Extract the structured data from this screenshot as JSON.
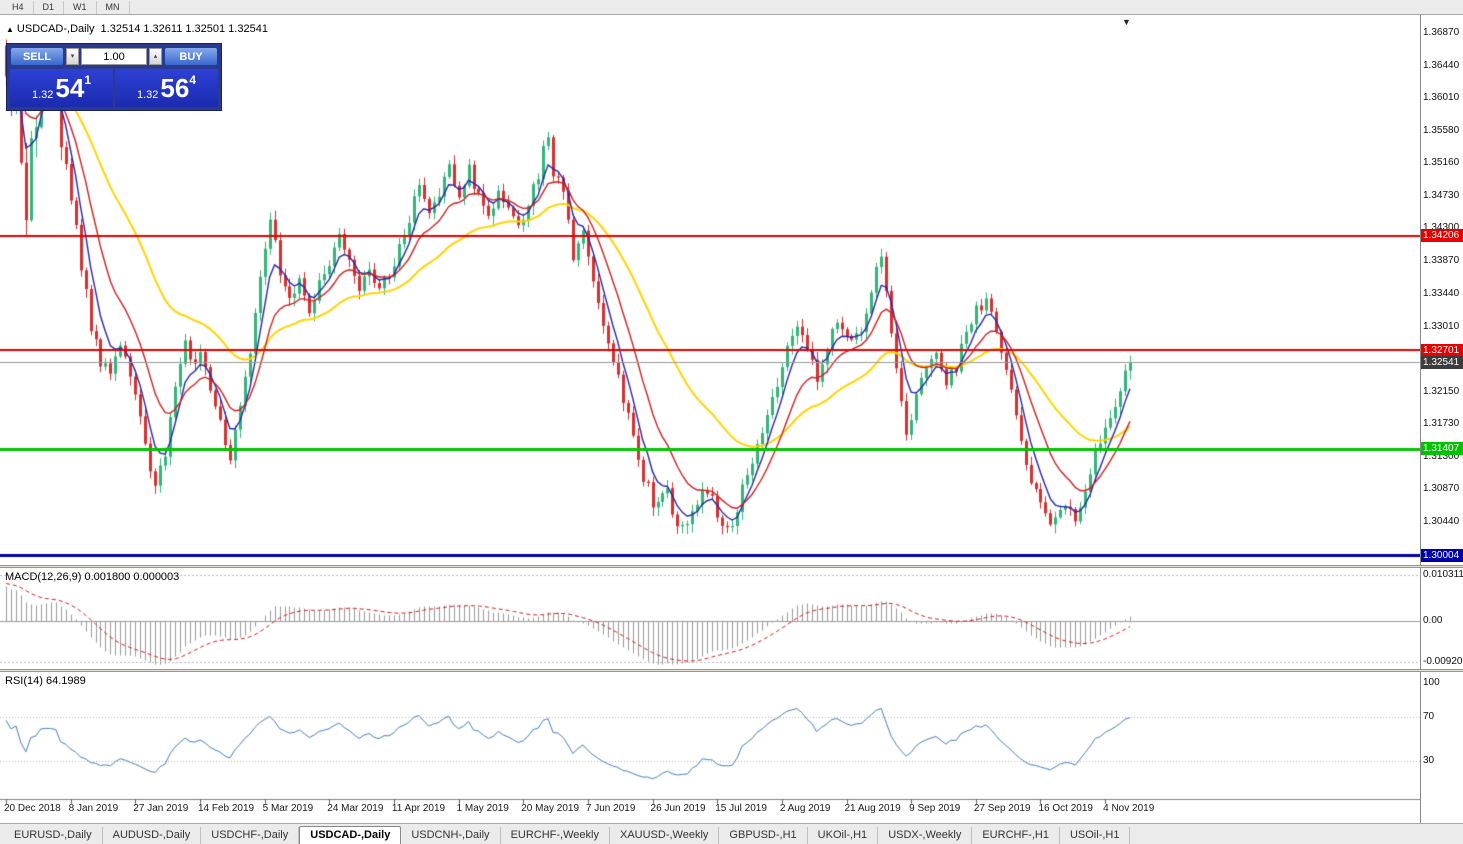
{
  "toolbar": {
    "timeframes": [
      "H4",
      "D1",
      "W1",
      "MN"
    ]
  },
  "chart": {
    "title": "USDCAD-,Daily",
    "ohlc": "1.32514 1.32611 1.32501 1.32541",
    "trade_panel": {
      "sell_label": "SELL",
      "buy_label": "BUY",
      "volume": "1.00",
      "sell_price_main": "1.32",
      "sell_price_big": "54",
      "sell_price_sup": "1",
      "buy_price_main": "1.32",
      "buy_price_big": "56",
      "buy_price_sup": "4"
    }
  },
  "chart_data": {
    "type": "candlestick",
    "symbol": "USDCAD-",
    "timeframe": "Daily",
    "y_ticks": [
      "1.36870",
      "1.36440",
      "1.36010",
      "1.35580",
      "1.35160",
      "1.34730",
      "1.34300",
      "1.33870",
      "1.33440",
      "1.33010",
      "1.32580",
      "1.32150",
      "1.31730",
      "1.31300",
      "1.30870",
      "1.30440"
    ],
    "y_range": [
      1.2989,
      1.3708
    ],
    "x_labels": [
      "20 Dec 2018",
      "8 Jan 2019",
      "27 Jan 2019",
      "14 Feb 2019",
      "5 Mar 2019",
      "24 Mar 2019",
      "11 Apr 2019",
      "1 May 2019",
      "20 May 2019",
      "7 Jun 2019",
      "26 Jun 2019",
      "15 Jul 2019",
      "2 Aug 2019",
      "21 Aug 2019",
      "9 Sep 2019",
      "27 Sep 2019",
      "16 Oct 2019",
      "4 Nov 2019"
    ],
    "x_label_step": 13,
    "hlines": [
      {
        "price": 1.34206,
        "label": "1.34206",
        "color": "#e80000",
        "width": 2
      },
      {
        "price": 1.32701,
        "label": "1.32701",
        "color": "#e80000",
        "width": 2
      },
      {
        "price": 1.31407,
        "label": "1.31407",
        "color": "#00c400",
        "width": 3
      },
      {
        "price": 1.30004,
        "label": "1.30004",
        "color": "#0000a8",
        "width": 3
      }
    ],
    "current_price": {
      "price": 1.32541,
      "label": "1.32541",
      "color": "#3c3c3c"
    },
    "colors": {
      "bull": "#33b57a",
      "bear": "#d63031"
    },
    "moving_averages": [
      {
        "type": "ema",
        "period": 34,
        "color": "#ffd400",
        "width": 2
      },
      {
        "type": "ema",
        "period": 5,
        "color": "#2828aa",
        "width": 1.4
      },
      {
        "type": "ema",
        "period": 12,
        "color": "#cc2222",
        "width": 1.4
      }
    ],
    "candles": {
      "count": 227,
      "last_close": 1.32541,
      "anchors": [
        [
          0,
          1.3655
        ],
        [
          1,
          1.3585
        ],
        [
          2,
          1.3625
        ],
        [
          3,
          1.35
        ],
        [
          4,
          1.3455
        ],
        [
          5,
          1.354
        ],
        [
          7,
          1.3612
        ],
        [
          9,
          1.3662
        ],
        [
          10,
          1.364
        ],
        [
          11,
          1.356
        ],
        [
          13,
          1.3475
        ],
        [
          15,
          1.3378
        ],
        [
          17,
          1.3302
        ],
        [
          19,
          1.3256
        ],
        [
          21,
          1.3232
        ],
        [
          23,
          1.3286
        ],
        [
          25,
          1.3246
        ],
        [
          26,
          1.3216
        ],
        [
          28,
          1.3146
        ],
        [
          30,
          1.3086
        ],
        [
          32,
          1.3132
        ],
        [
          34,
          1.3226
        ],
        [
          36,
          1.3286
        ],
        [
          38,
          1.3246
        ],
        [
          39,
          1.3272
        ],
        [
          41,
          1.3216
        ],
        [
          43,
          1.3176
        ],
        [
          45,
          1.3132
        ],
        [
          47,
          1.3202
        ],
        [
          49,
          1.3266
        ],
        [
          51,
          1.3362
        ],
        [
          53,
          1.3452
        ],
        [
          55,
          1.3376
        ],
        [
          57,
          1.3332
        ],
        [
          59,
          1.3366
        ],
        [
          61,
          1.3322
        ],
        [
          63,
          1.3356
        ],
        [
          65,
          1.3386
        ],
        [
          67,
          1.3422
        ],
        [
          69,
          1.3392
        ],
        [
          71,
          1.3356
        ],
        [
          73,
          1.3386
        ],
        [
          75,
          1.3352
        ],
        [
          77,
          1.3376
        ],
        [
          79,
          1.3402
        ],
        [
          81,
          1.3446
        ],
        [
          83,
          1.3486
        ],
        [
          85,
          1.3452
        ],
        [
          87,
          1.3476
        ],
        [
          89,
          1.3506
        ],
        [
          91,
          1.3472
        ],
        [
          93,
          1.3506
        ],
        [
          95,
          1.3472
        ],
        [
          97,
          1.3446
        ],
        [
          99,
          1.3486
        ],
        [
          101,
          1.3452
        ],
        [
          103,
          1.3436
        ],
        [
          105,
          1.3466
        ],
        [
          107,
          1.3502
        ],
        [
          108,
          1.3546
        ],
        [
          109,
          1.3556
        ],
        [
          110,
          1.3506
        ],
        [
          112,
          1.3476
        ],
        [
          114,
          1.3386
        ],
        [
          116,
          1.3426
        ],
        [
          117,
          1.3402
        ],
        [
          119,
          1.3332
        ],
        [
          121,
          1.3272
        ],
        [
          123,
          1.3232
        ],
        [
          125,
          1.3182
        ],
        [
          127,
          1.3126
        ],
        [
          129,
          1.3086
        ],
        [
          131,
          1.3062
        ],
        [
          133,
          1.3082
        ],
        [
          135,
          1.3046
        ],
        [
          137,
          1.3032
        ],
        [
          139,
          1.3072
        ],
        [
          141,
          1.3092
        ],
        [
          143,
          1.3046
        ],
        [
          145,
          1.3028
        ],
        [
          147,
          1.3062
        ],
        [
          149,
          1.3106
        ],
        [
          151,
          1.3152
        ],
        [
          153,
          1.3186
        ],
        [
          155,
          1.3226
        ],
        [
          157,
          1.3266
        ],
        [
          159,
          1.3306
        ],
        [
          161,
          1.3276
        ],
        [
          163,
          1.3236
        ],
        [
          165,
          1.3276
        ],
        [
          167,
          1.3312
        ],
        [
          169,
          1.3296
        ],
        [
          171,
          1.3282
        ],
        [
          173,
          1.3322
        ],
        [
          175,
          1.3376
        ],
        [
          176,
          1.3386
        ],
        [
          178,
          1.3292
        ],
        [
          180,
          1.3196
        ],
        [
          181,
          1.3152
        ],
        [
          183,
          1.3202
        ],
        [
          185,
          1.3246
        ],
        [
          187,
          1.3262
        ],
        [
          189,
          1.3222
        ],
        [
          191,
          1.3252
        ],
        [
          193,
          1.3286
        ],
        [
          195,
          1.3322
        ],
        [
          197,
          1.3342
        ],
        [
          199,
          1.3302
        ],
        [
          201,
          1.3252
        ],
        [
          203,
          1.3182
        ],
        [
          205,
          1.3122
        ],
        [
          207,
          1.3082
        ],
        [
          209,
          1.3056
        ],
        [
          211,
          1.3042
        ],
        [
          213,
          1.3068
        ],
        [
          215,
          1.3048
        ],
        [
          217,
          1.3092
        ],
        [
          219,
          1.3132
        ],
        [
          221,
          1.3166
        ],
        [
          223,
          1.3206
        ],
        [
          225,
          1.3242
        ],
        [
          226,
          1.32541
        ]
      ]
    },
    "macd": {
      "label": "MACD(12,26,9) 0.001800 0.000003",
      "params": [
        12,
        26,
        9
      ],
      "scale_top": "0.010311",
      "scale_zero": "0.00",
      "scale_bottom": "-0.009203",
      "value_top": 0.0118,
      "value_bottom": -0.0107,
      "hist_color": "#9a9a9a",
      "signal_color": "#d42020",
      "init_fast_offset": -0.0045,
      "init_slow_offset": -0.0125,
      "init_signal": 0.0085
    },
    "rsi": {
      "label": "RSI(14) 64.1989",
      "period": 14,
      "value": 64.1989,
      "levels": [
        "100",
        "70",
        "30"
      ],
      "line_color": "#4a7ebc"
    }
  },
  "bottom_tabs": {
    "active": "USDCAD-,Daily",
    "tabs": [
      "EURUSD-,Daily",
      "AUDUSD-,Daily",
      "USDCHF-,Daily",
      "USDCAD-,Daily",
      "USDCNH-,Daily",
      "EURCHF-,Weekly",
      "XAUUSD-,Weekly",
      "GBPUSD-,H1",
      "UKOil-,H1",
      "USDX-,Weekly",
      "EURCHF-,H1",
      "USOil-,H1"
    ]
  }
}
